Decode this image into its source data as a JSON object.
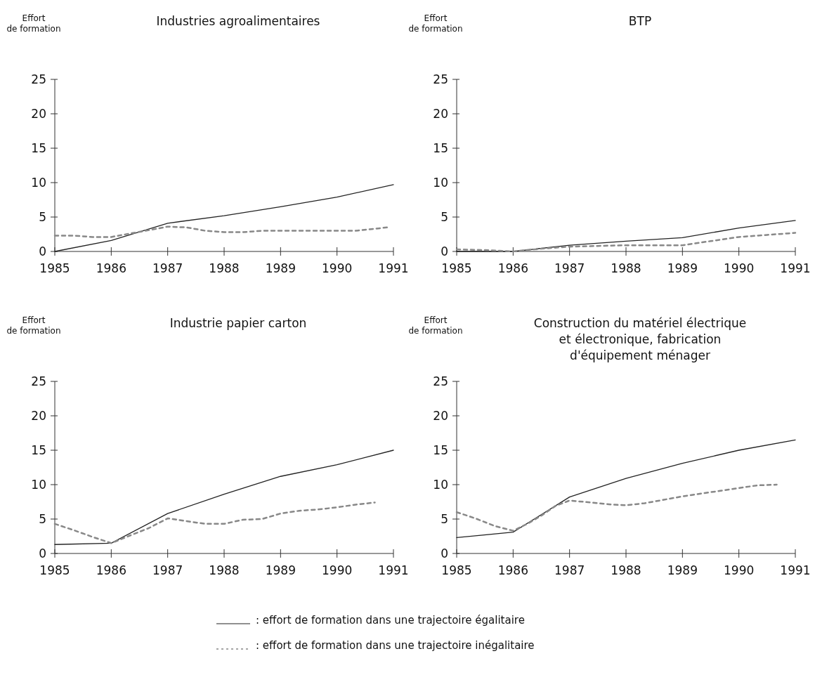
{
  "chart_data": [
    {
      "type": "line",
      "title": "Industries agroalimentaires",
      "ylabel": "Effort de formation",
      "xlim": [
        1985,
        1991
      ],
      "xticks": [
        1985,
        1986,
        1987,
        1988,
        1989,
        1990,
        1991
      ],
      "ylim": [
        0,
        25
      ],
      "yticks": [
        0,
        5,
        10,
        15,
        20,
        25
      ],
      "grid": false,
      "legend": false,
      "series": [
        {
          "color": "#222222",
          "line_style": "solid",
          "x": [
            1985,
            1986,
            1987,
            1988,
            1989,
            1990,
            1991
          ],
          "values": [
            0,
            1.6,
            4.1,
            5.2,
            6.5,
            7.9,
            9.7
          ]
        },
        {
          "color": "#888888",
          "line_style": "dashed",
          "x": [
            1985,
            1985.33,
            1985.67,
            1986,
            1986.33,
            1986.67,
            1987,
            1987.33,
            1987.67,
            1988,
            1988.33,
            1988.67,
            1989,
            1989.33,
            1989.67,
            1990,
            1990.33,
            1990.67,
            1990.9
          ],
          "values": [
            2.3,
            2.3,
            2.1,
            2.1,
            2.6,
            3.1,
            3.6,
            3.5,
            3.0,
            2.8,
            2.8,
            3.0,
            3.0,
            3.0,
            3.0,
            3.0,
            3.0,
            3.3,
            3.5
          ]
        }
      ]
    },
    {
      "type": "line",
      "title": "BTP",
      "ylabel": "Effort de formation",
      "xlim": [
        1985,
        1991
      ],
      "xticks": [
        1985,
        1986,
        1987,
        1988,
        1989,
        1990,
        1991
      ],
      "ylim": [
        0,
        25
      ],
      "yticks": [
        0,
        5,
        10,
        15,
        20,
        25
      ],
      "grid": false,
      "legend": false,
      "series": [
        {
          "color": "#222222",
          "line_style": "solid",
          "x": [
            1985,
            1986,
            1987,
            1988,
            1989,
            1990,
            1991
          ],
          "values": [
            0,
            0,
            0.9,
            1.5,
            2.0,
            3.4,
            4.5
          ]
        },
        {
          "color": "#888888",
          "line_style": "dashed",
          "x": [
            1985,
            1985.5,
            1986,
            1986.5,
            1987,
            1987.5,
            1988,
            1988.5,
            1989,
            1989.5,
            1990,
            1990.5,
            1991
          ],
          "values": [
            0.3,
            0.2,
            0,
            0.4,
            0.7,
            0.8,
            0.9,
            0.9,
            0.9,
            1.5,
            2.1,
            2.4,
            2.7
          ]
        }
      ]
    },
    {
      "type": "line",
      "title": "Industrie papier carton",
      "ylabel": "Effort de formation",
      "xlim": [
        1985,
        1991
      ],
      "xticks": [
        1985,
        1986,
        1987,
        1988,
        1989,
        1990,
        1991
      ],
      "ylim": [
        0,
        25
      ],
      "yticks": [
        0,
        5,
        10,
        15,
        20,
        25
      ],
      "grid": false,
      "legend": false,
      "series": [
        {
          "color": "#222222",
          "line_style": "solid",
          "x": [
            1985,
            1986,
            1987,
            1988,
            1989,
            1990,
            1991
          ],
          "values": [
            1.3,
            1.5,
            5.8,
            8.6,
            11.2,
            12.9,
            15.0
          ]
        },
        {
          "color": "#888888",
          "line_style": "dashed",
          "x": [
            1985,
            1985.33,
            1985.67,
            1986,
            1986.33,
            1986.67,
            1987,
            1987.33,
            1987.67,
            1988,
            1988.33,
            1988.67,
            1989,
            1989.33,
            1989.67,
            1990,
            1990.33,
            1990.67
          ],
          "values": [
            4.3,
            3.4,
            2.4,
            1.5,
            2.6,
            3.7,
            5.1,
            4.7,
            4.3,
            4.3,
            4.9,
            5.0,
            5.8,
            6.2,
            6.4,
            6.7,
            7.1,
            7.4
          ]
        }
      ]
    },
    {
      "type": "line",
      "title": "Construction du matériel électrique et électronique, fabrication d'équipement ménager",
      "ylabel": "Effort de formation",
      "xlim": [
        1985,
        1991
      ],
      "xticks": [
        1985,
        1986,
        1987,
        1988,
        1989,
        1990,
        1991
      ],
      "ylim": [
        0,
        25
      ],
      "yticks": [
        0,
        5,
        10,
        15,
        20,
        25
      ],
      "grid": false,
      "legend": "bottom",
      "series": [
        {
          "name": ": effort de formation dans une trajectoire égalitaire",
          "color": "#222222",
          "line_style": "solid",
          "x": [
            1985,
            1986,
            1987,
            1988,
            1989,
            1990,
            1991
          ],
          "values": [
            2.3,
            3.1,
            8.2,
            10.9,
            13.1,
            15.0,
            16.5
          ]
        },
        {
          "name": ": effort de formation dans une trajectoire inégalitaire",
          "color": "#888888",
          "line_style": "dashed",
          "x": [
            1985,
            1985.33,
            1985.67,
            1986,
            1986.25,
            1986.5,
            1986.75,
            1987,
            1987.5,
            1987.75,
            1988,
            1988.33,
            1988.67,
            1989,
            1989.33,
            1989.67,
            1990,
            1990.33,
            1990.67
          ],
          "values": [
            6.0,
            5.1,
            4.0,
            3.3,
            4.3,
            5.5,
            6.9,
            7.7,
            7.3,
            7.1,
            7.0,
            7.3,
            7.8,
            8.3,
            8.7,
            9.1,
            9.5,
            9.9,
            10.0
          ]
        }
      ]
    }
  ]
}
